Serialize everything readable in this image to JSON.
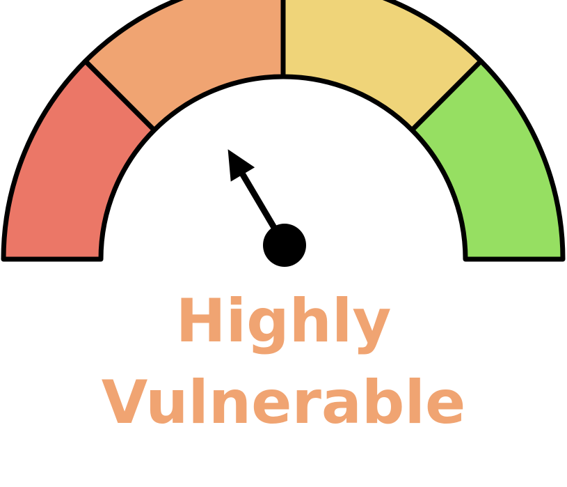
{
  "gauge": {
    "segments": [
      {
        "name": "red",
        "color": "#EB7767"
      },
      {
        "name": "orange",
        "color": "#F0A472"
      },
      {
        "name": "yellow",
        "color": "#EFD479"
      },
      {
        "name": "green",
        "color": "#96DF62"
      }
    ],
    "needle_level": 0.33,
    "outline_color": "#000000"
  },
  "label": {
    "line1": "Highly",
    "line2": "Vulnerable",
    "color": "#F0A472"
  }
}
